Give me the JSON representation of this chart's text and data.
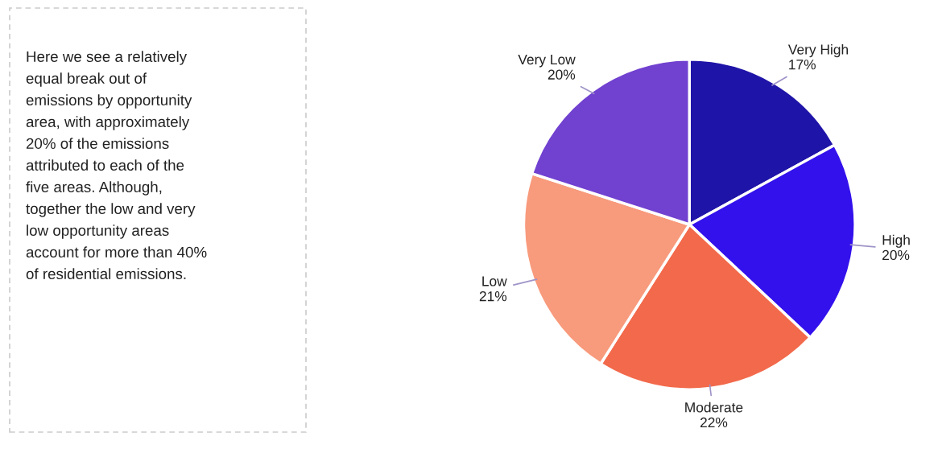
{
  "chart_data": [
    {
      "type": "other",
      "annotations": [
        "Here we see a relatively",
        "equal break out of",
        "emissions by opportunity",
        "area, with approximately",
        "20% of the emissions",
        "attributed to each of the",
        "five areas. Although,",
        "together the low and very",
        "low opportunity areas",
        "account for more than 40%",
        "of residential emissions."
      ]
    },
    {
      "type": "pie",
      "categories": [
        "Very High",
        "High",
        "Moderate",
        "Low",
        "Very Low"
      ],
      "values": [
        17,
        20,
        22,
        21,
        20
      ],
      "value_labels": [
        "17%",
        "20%",
        "22%",
        "21%",
        "20%"
      ],
      "colors": [
        "#1f14a8",
        "#3311ec",
        "#f2694b",
        "#f89a7c",
        "#7141d0"
      ],
      "legend": false
    }
  ]
}
